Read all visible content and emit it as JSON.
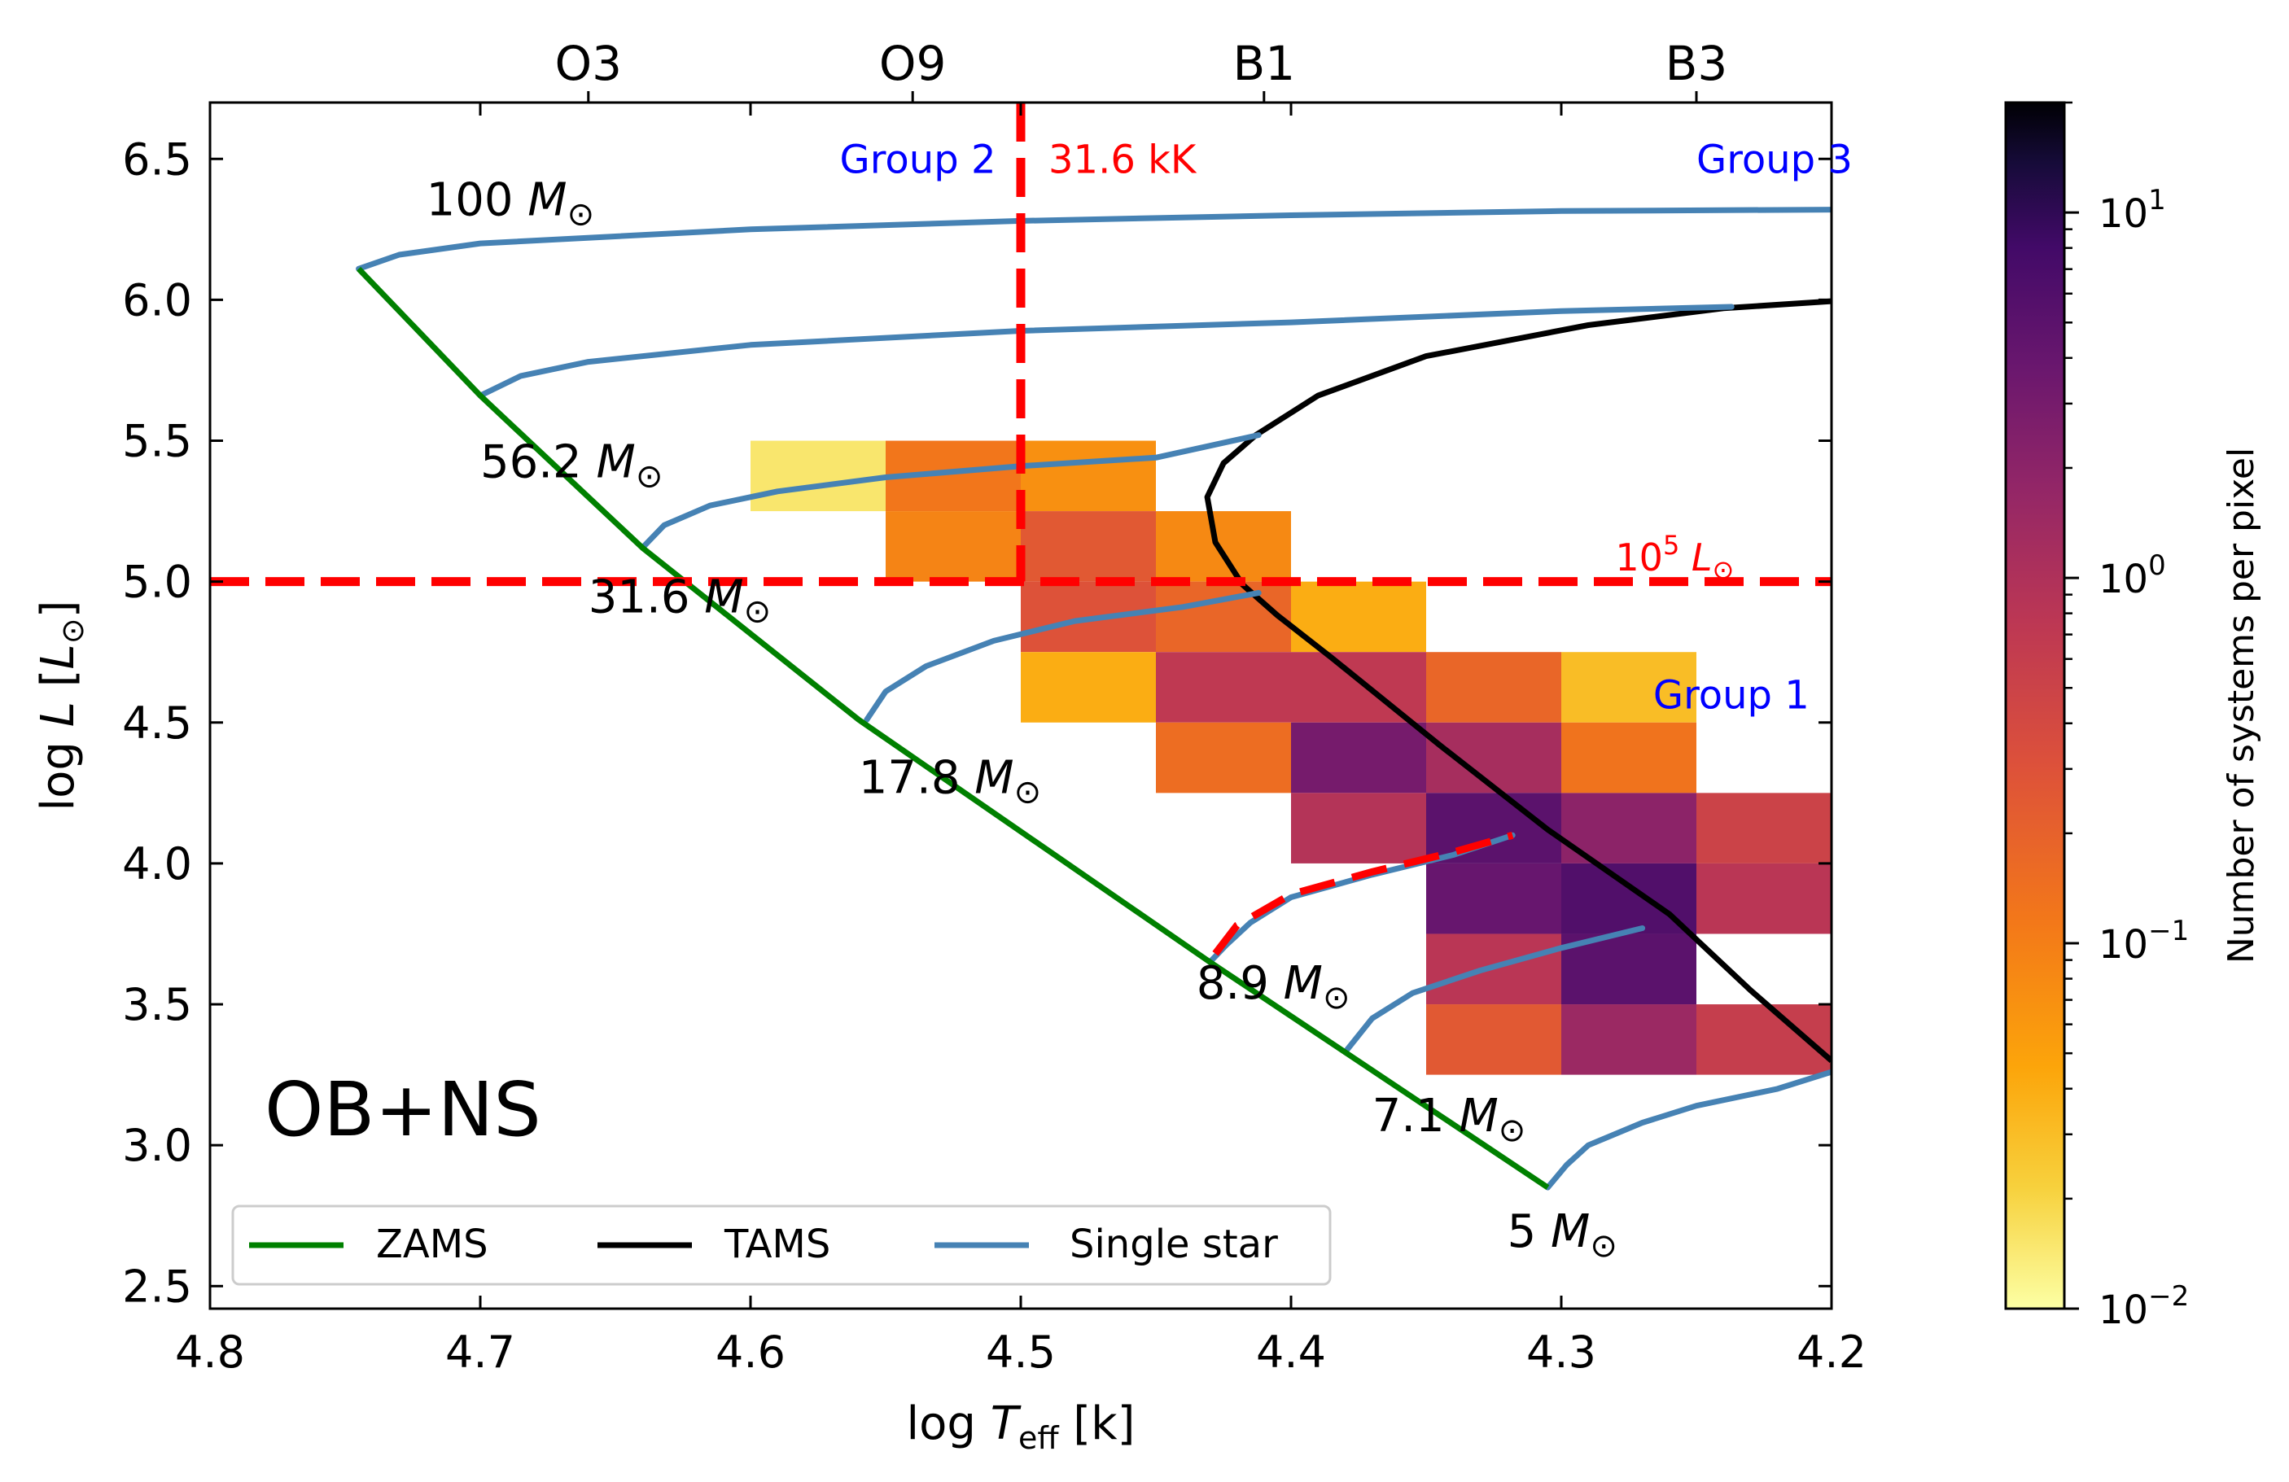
{
  "chart_data": {
    "type": "heatmap",
    "xlabel": "log T_eff [k]",
    "ylabel": "log L [L_⊙]",
    "xlim": [
      4.8,
      4.2
    ],
    "ylim": [
      2.42,
      6.7
    ],
    "x_inverted": true,
    "x_ticks": [
      "4.8",
      "4.7",
      "4.6",
      "4.5",
      "4.4",
      "4.3",
      "4.2"
    ],
    "y_ticks": [
      "2.5",
      "3.0",
      "3.5",
      "4.0",
      "4.5",
      "5.0",
      "5.5",
      "6.0",
      "6.5"
    ],
    "top_axis": {
      "ticks": [
        {
          "label": "O3",
          "x": 4.66
        },
        {
          "label": "O9",
          "x": 4.54
        },
        {
          "label": "B1",
          "x": 4.41
        },
        {
          "label": "B3",
          "x": 4.25
        }
      ]
    },
    "panel_label": "OB+NS",
    "colorbar": {
      "label": "Number of systems per pixel",
      "scale": "log",
      "min": 0.01,
      "max": 20,
      "colormap": "inferno_r",
      "ticks": [
        {
          "base": "10",
          "exp": "1",
          "value": 10
        },
        {
          "base": "10",
          "exp": "0",
          "value": 1
        },
        {
          "base": "10",
          "exp": "−1",
          "value": 0.1
        },
        {
          "base": "10",
          "exp": "−2",
          "value": 0.01
        }
      ]
    },
    "heatmap_cells": {
      "x_bin_width": 0.05,
      "y_bin_width": 0.25,
      "cells": [
        {
          "x0": 4.6,
          "y0": 5.25,
          "value": 0.015
        },
        {
          "x0": 4.55,
          "y0": 5.25,
          "value": 0.12
        },
        {
          "x0": 4.5,
          "y0": 5.25,
          "value": 0.07
        },
        {
          "x0": 4.55,
          "y0": 5.0,
          "value": 0.09
        },
        {
          "x0": 4.5,
          "y0": 5.0,
          "value": 0.25
        },
        {
          "x0": 4.45,
          "y0": 5.0,
          "value": 0.08
        },
        {
          "x0": 4.5,
          "y0": 4.75,
          "value": 0.3
        },
        {
          "x0": 4.45,
          "y0": 4.75,
          "value": 0.18
        },
        {
          "x0": 4.4,
          "y0": 4.75,
          "value": 0.04
        },
        {
          "x0": 4.5,
          "y0": 4.5,
          "value": 0.04
        },
        {
          "x0": 4.45,
          "y0": 4.5,
          "value": 0.7
        },
        {
          "x0": 4.4,
          "y0": 4.5,
          "value": 0.7
        },
        {
          "x0": 4.35,
          "y0": 4.5,
          "value": 0.18
        },
        {
          "x0": 4.3,
          "y0": 4.5,
          "value": 0.03
        },
        {
          "x0": 4.45,
          "y0": 4.25,
          "value": 0.15
        },
        {
          "x0": 4.4,
          "y0": 4.25,
          "value": 3.0
        },
        {
          "x0": 4.35,
          "y0": 4.25,
          "value": 1.2
        },
        {
          "x0": 4.3,
          "y0": 4.25,
          "value": 0.13
        },
        {
          "x0": 4.4,
          "y0": 4.0,
          "value": 0.9
        },
        {
          "x0": 4.35,
          "y0": 4.0,
          "value": 5.0
        },
        {
          "x0": 4.3,
          "y0": 4.0,
          "value": 2.0
        },
        {
          "x0": 4.25,
          "y0": 4.0,
          "value": 0.5
        },
        {
          "x0": 4.35,
          "y0": 3.75,
          "value": 4.0
        },
        {
          "x0": 4.3,
          "y0": 3.75,
          "value": 6.0
        },
        {
          "x0": 4.25,
          "y0": 3.75,
          "value": 0.8
        },
        {
          "x0": 4.35,
          "y0": 3.5,
          "value": 0.8
        },
        {
          "x0": 4.3,
          "y0": 3.5,
          "value": 5.0
        },
        {
          "x0": 4.35,
          "y0": 3.25,
          "value": 0.25
        },
        {
          "x0": 4.3,
          "y0": 3.25,
          "value": 1.5
        },
        {
          "x0": 4.25,
          "y0": 3.25,
          "value": 0.6
        }
      ]
    },
    "series": [
      {
        "name": "ZAMS",
        "color": "#008000",
        "points": [
          [
            4.745,
            6.11
          ],
          [
            4.7,
            5.66
          ],
          [
            4.64,
            5.12
          ],
          [
            4.56,
            4.51
          ],
          [
            4.43,
            3.65
          ],
          [
            4.38,
            3.33
          ],
          [
            4.305,
            2.85
          ]
        ]
      },
      {
        "name": "TAMS",
        "color": "#000000",
        "points": [
          [
            4.2,
            5.995
          ],
          [
            4.24,
            5.97
          ],
          [
            4.29,
            5.91
          ],
          [
            4.35,
            5.8
          ],
          [
            4.39,
            5.66
          ],
          [
            4.413,
            5.52
          ],
          [
            4.425,
            5.42
          ],
          [
            4.431,
            5.3
          ],
          [
            4.428,
            5.14
          ],
          [
            4.418,
            4.99
          ],
          [
            4.405,
            4.88
          ],
          [
            4.385,
            4.73
          ],
          [
            4.345,
            4.42
          ],
          [
            4.305,
            4.12
          ],
          [
            4.26,
            3.82
          ],
          [
            4.23,
            3.55
          ],
          [
            4.2,
            3.3
          ]
        ]
      },
      {
        "name": "Single star",
        "color": "#4682b4",
        "tracks": [
          {
            "label_mass": "100",
            "points": [
              [
                4.745,
                6.11
              ],
              [
                4.73,
                6.16
              ],
              [
                4.7,
                6.2
              ],
              [
                4.6,
                6.25
              ],
              [
                4.5,
                6.28
              ],
              [
                4.4,
                6.3
              ],
              [
                4.3,
                6.315
              ],
              [
                4.2,
                6.32
              ]
            ]
          },
          {
            "label_mass": "56.2",
            "points": [
              [
                4.7,
                5.66
              ],
              [
                4.685,
                5.73
              ],
              [
                4.66,
                5.78
              ],
              [
                4.6,
                5.84
              ],
              [
                4.5,
                5.89
              ],
              [
                4.4,
                5.92
              ],
              [
                4.3,
                5.96
              ],
              [
                4.237,
                5.975
              ]
            ]
          },
          {
            "label_mass": "31.6",
            "points": [
              [
                4.64,
                5.12
              ],
              [
                4.632,
                5.2
              ],
              [
                4.615,
                5.27
              ],
              [
                4.59,
                5.32
              ],
              [
                4.55,
                5.37
              ],
              [
                4.5,
                5.41
              ],
              [
                4.45,
                5.44
              ],
              [
                4.412,
                5.52
              ]
            ]
          },
          {
            "label_mass": "17.8",
            "points": [
              [
                4.557,
                4.51
              ],
              [
                4.55,
                4.61
              ],
              [
                4.535,
                4.7
              ],
              [
                4.51,
                4.79
              ],
              [
                4.48,
                4.86
              ],
              [
                4.44,
                4.91
              ],
              [
                4.412,
                4.96
              ]
            ]
          },
          {
            "label_mass": "8.9",
            "points": [
              [
                4.43,
                3.65
              ],
              [
                4.424,
                3.71
              ],
              [
                4.415,
                3.79
              ],
              [
                4.4,
                3.88
              ],
              [
                4.37,
                3.96
              ],
              [
                4.34,
                4.03
              ],
              [
                4.318,
                4.1
              ]
            ]
          },
          {
            "label_mass": "7.1",
            "points": [
              [
                4.38,
                3.33
              ],
              [
                4.37,
                3.45
              ],
              [
                4.355,
                3.54
              ],
              [
                4.33,
                3.62
              ],
              [
                4.3,
                3.7
              ],
              [
                4.27,
                3.77
              ]
            ]
          },
          {
            "label_mass": "5",
            "points": [
              [
                4.305,
                2.85
              ],
              [
                4.298,
                2.93
              ],
              [
                4.29,
                3.0
              ],
              [
                4.27,
                3.08
              ],
              [
                4.25,
                3.14
              ],
              [
                4.22,
                3.2
              ],
              [
                4.2,
                3.26
              ]
            ]
          }
        ]
      }
    ],
    "red_dashed_segment": [
      [
        4.428,
        3.68
      ],
      [
        4.42,
        3.78
      ],
      [
        4.4,
        3.89
      ],
      [
        4.37,
        3.97
      ],
      [
        4.34,
        4.04
      ],
      [
        4.318,
        4.1
      ]
    ],
    "reference_lines": [
      {
        "orientation": "vertical",
        "x": 4.5,
        "color": "#ff0000",
        "label": "31.6 kK"
      },
      {
        "orientation": "horizontal",
        "y": 5.0,
        "color": "#ff0000",
        "label_base": "10",
        "label_exp": "5",
        "label_unit": "L"
      }
    ],
    "mass_labels": [
      {
        "text": "100",
        "x": 4.72,
        "y": 6.3
      },
      {
        "text": "56.2",
        "x": 4.7,
        "y": 5.37
      },
      {
        "text": "31.6",
        "x": 4.66,
        "y": 4.89
      },
      {
        "text": "17.8",
        "x": 4.56,
        "y": 4.25
      },
      {
        "text": "8.9",
        "x": 4.435,
        "y": 3.52
      },
      {
        "text": "7.1",
        "x": 4.37,
        "y": 3.05
      },
      {
        "text": "5",
        "x": 4.32,
        "y": 2.64
      }
    ],
    "group_labels": [
      {
        "text": "Group 2",
        "x": 4.567,
        "y": 6.45,
        "color": "#0000ff"
      },
      {
        "text": "Group 3",
        "x": 4.25,
        "y": 6.45,
        "color": "#0000ff"
      },
      {
        "text": "Group 1",
        "x": 4.266,
        "y": 4.55,
        "color": "#0000ff"
      }
    ],
    "legend": {
      "position": "lower-left",
      "entries": [
        {
          "label": "ZAMS",
          "color": "#008000"
        },
        {
          "label": "TAMS",
          "color": "#000000"
        },
        {
          "label": "Single star",
          "color": "#4682b4"
        }
      ]
    }
  }
}
